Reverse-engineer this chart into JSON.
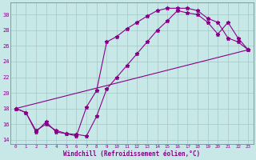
{
  "xlabel": "Windchill (Refroidissement éolien,°C)",
  "bg_color": "#c8e8e8",
  "line_color": "#880088",
  "grid_color": "#a0c8c8",
  "xlim": [
    -0.5,
    23.5
  ],
  "ylim": [
    13.5,
    31.5
  ],
  "yticks": [
    14,
    16,
    18,
    20,
    22,
    24,
    26,
    28,
    30
  ],
  "xticks": [
    0,
    1,
    2,
    3,
    4,
    5,
    6,
    7,
    8,
    9,
    10,
    11,
    12,
    13,
    14,
    15,
    16,
    17,
    18,
    19,
    20,
    21,
    22,
    23
  ],
  "curve1_x": [
    0,
    1,
    2,
    3,
    4,
    5,
    6,
    7,
    8,
    9,
    10,
    11,
    12,
    13,
    14,
    15,
    16,
    17,
    18,
    19,
    20,
    21,
    22,
    23
  ],
  "curve1_y": [
    18.0,
    17.5,
    15.0,
    16.3,
    15.0,
    14.8,
    14.5,
    18.2,
    20.3,
    26.5,
    27.2,
    28.2,
    29.0,
    29.8,
    30.5,
    30.8,
    30.8,
    30.8,
    30.5,
    29.5,
    29.0,
    27.0,
    26.5,
    25.5
  ],
  "curve2_x": [
    0,
    1,
    2,
    3,
    4,
    5,
    6,
    7,
    8,
    9,
    10,
    11,
    12,
    13,
    14,
    15,
    16,
    17,
    18,
    19,
    20,
    21,
    22,
    23
  ],
  "curve2_y": [
    18.0,
    17.5,
    15.2,
    16.0,
    15.2,
    14.8,
    14.7,
    14.5,
    17.0,
    20.5,
    22.0,
    23.5,
    25.0,
    26.5,
    28.0,
    29.2,
    30.5,
    30.2,
    30.0,
    29.0,
    27.5,
    29.0,
    27.0,
    25.5
  ],
  "curve3_x": [
    0,
    23
  ],
  "curve3_y": [
    18.0,
    25.5
  ]
}
